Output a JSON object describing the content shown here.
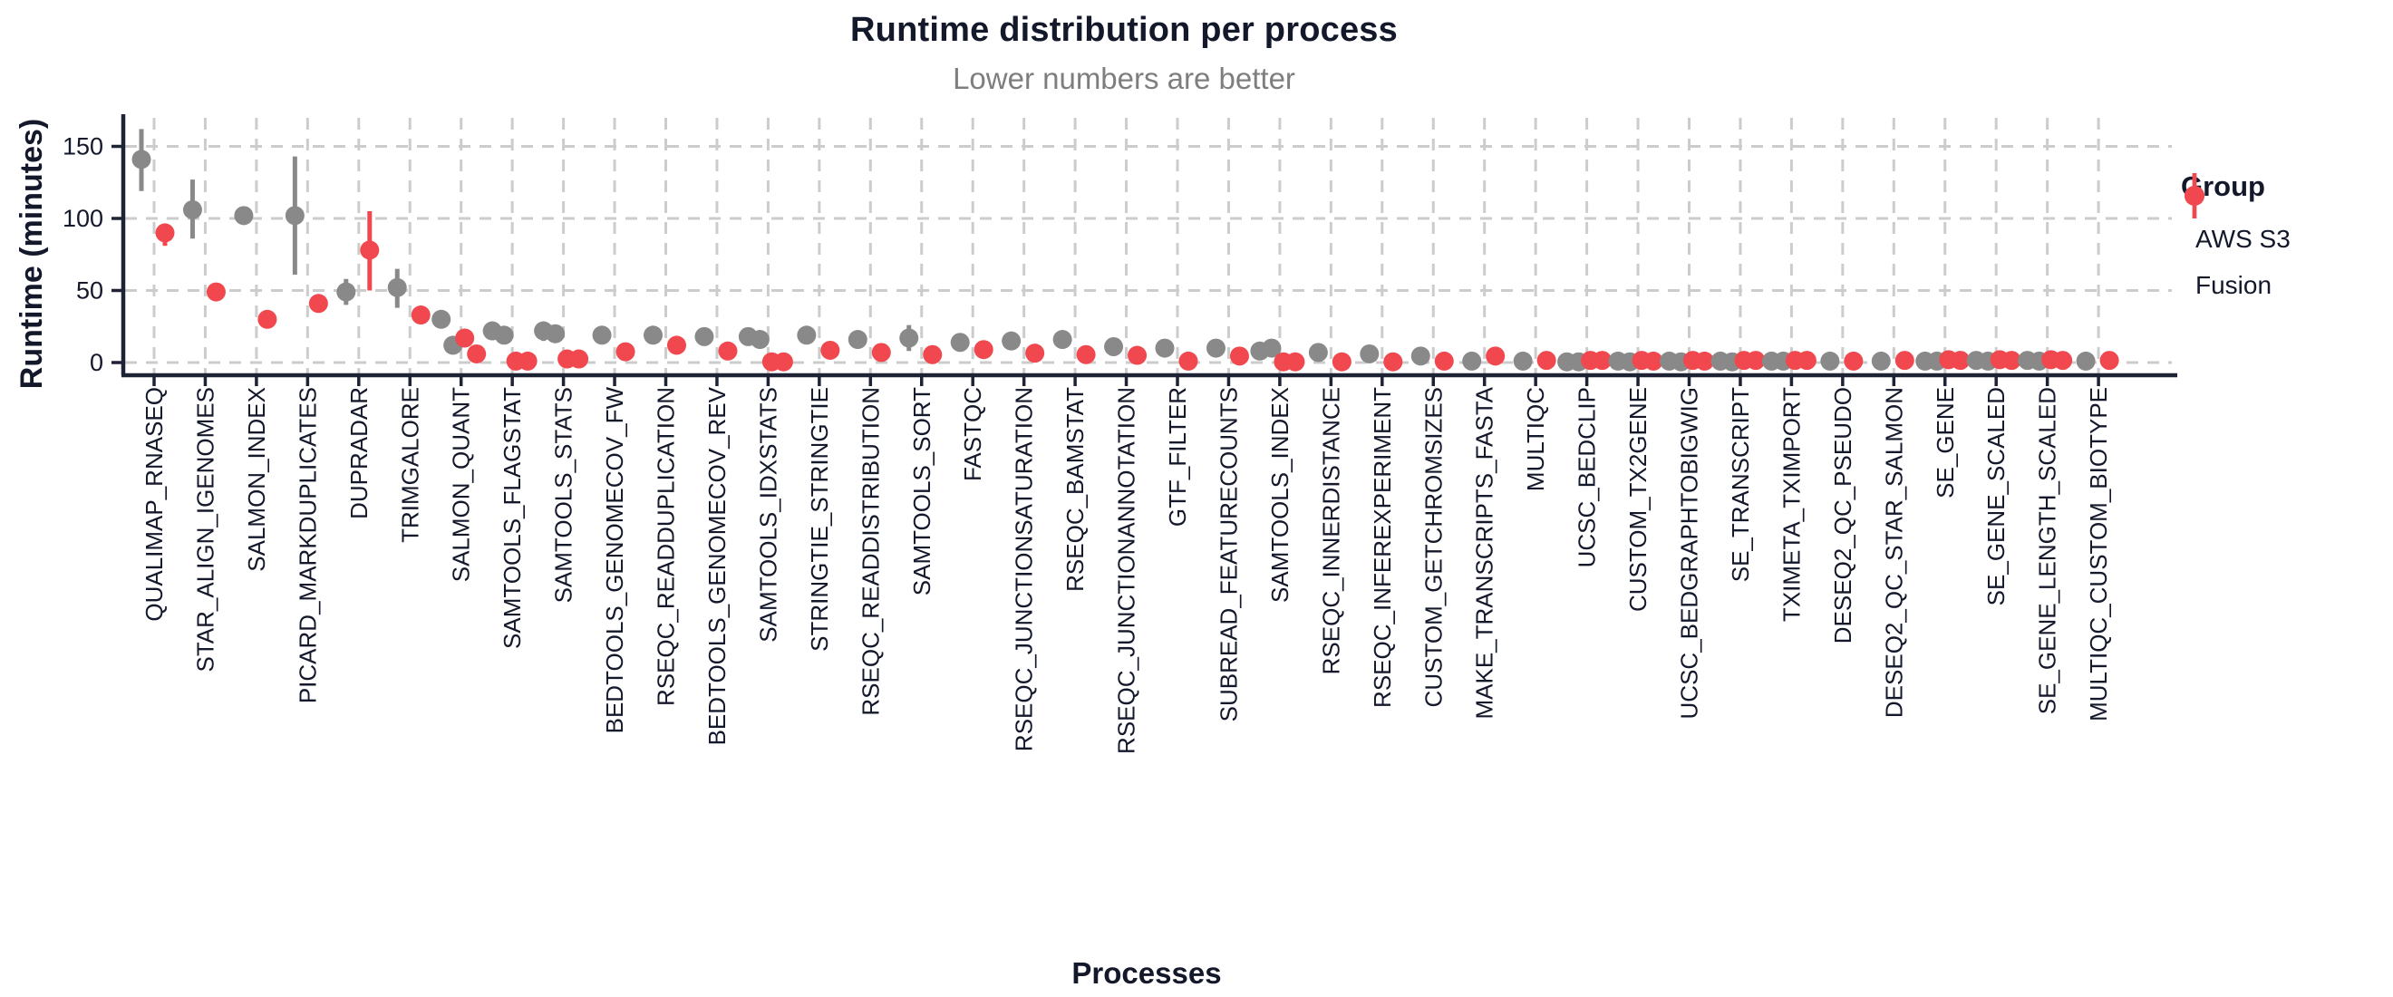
{
  "chart_data": {
    "type": "pointrange-scatter",
    "title": "Runtime distribution per process",
    "subtitle": "Lower numbers are better",
    "xlabel": "Processes",
    "ylabel": "Runtime (minutes)",
    "legend_title": "Group",
    "legend_position": "right",
    "grid": "dashed-major-both",
    "ylim": [
      0,
      165
    ],
    "yticks": [
      0,
      50,
      100,
      150
    ],
    "colors": {
      "aws_s3": "#898989",
      "fusion": "#F0484E",
      "text": "#14182B",
      "subtitle": "#7E7E7E",
      "grid": "#CCCCCC",
      "axis": "#1E2235"
    },
    "series": [
      {
        "name": "AWS S3",
        "key": "aws_s3",
        "color": "#898989"
      },
      {
        "name": "Fusion",
        "key": "fusion",
        "color": "#F0484E"
      }
    ],
    "data": [
      {
        "process": "QUALIMAP_RNASEQ",
        "aws_s3": {
          "points": [
            141
          ],
          "range": [
            119,
            162
          ]
        },
        "fusion": {
          "points": [
            90
          ],
          "range": [
            81,
            96
          ]
        }
      },
      {
        "process": "STAR_ALIGN_IGENOMES",
        "aws_s3": {
          "points": [
            106
          ],
          "range": [
            86,
            127
          ]
        },
        "fusion": {
          "points": [
            49
          ],
          "range": null
        }
      },
      {
        "process": "SALMON_INDEX",
        "aws_s3": {
          "points": [
            102
          ],
          "range": null
        },
        "fusion": {
          "points": [
            30
          ],
          "range": null
        }
      },
      {
        "process": "PICARD_MARKDUPLICATES",
        "aws_s3": {
          "points": [
            102
          ],
          "range": [
            61,
            143
          ]
        },
        "fusion": {
          "points": [
            41
          ],
          "range": null
        }
      },
      {
        "process": "DUPRADAR",
        "aws_s3": {
          "points": [
            49
          ],
          "range": [
            40,
            58
          ]
        },
        "fusion": {
          "points": [
            78
          ],
          "range": [
            50,
            105
          ]
        }
      },
      {
        "process": "TRIMGALORE",
        "aws_s3": {
          "points": [
            52
          ],
          "range": [
            38,
            65
          ]
        },
        "fusion": {
          "points": [
            33
          ],
          "range": null
        }
      },
      {
        "process": "SALMON_QUANT",
        "aws_s3": {
          "points": [
            30,
            12
          ],
          "range": null
        },
        "fusion": {
          "points": [
            17,
            6
          ],
          "range": null
        }
      },
      {
        "process": "SAMTOOLS_FLAGSTAT",
        "aws_s3": {
          "points": [
            22,
            19
          ],
          "range": null
        },
        "fusion": {
          "points": [
            1,
            1
          ],
          "range": null
        }
      },
      {
        "process": "SAMTOOLS_STATS",
        "aws_s3": {
          "points": [
            22,
            20
          ],
          "range": [
            15,
            28
          ]
        },
        "fusion": {
          "points": [
            2.5,
            2.5
          ],
          "range": null
        }
      },
      {
        "process": "BEDTOOLS_GENOMECOV_FW",
        "aws_s3": {
          "points": [
            19
          ],
          "range": null
        },
        "fusion": {
          "points": [
            7.5
          ],
          "range": null
        }
      },
      {
        "process": "RSEQC_READDUPLICATION",
        "aws_s3": {
          "points": [
            19
          ],
          "range": null
        },
        "fusion": {
          "points": [
            12
          ],
          "range": null
        }
      },
      {
        "process": "BEDTOOLS_GENOMECOV_REV",
        "aws_s3": {
          "points": [
            18
          ],
          "range": null
        },
        "fusion": {
          "points": [
            8
          ],
          "range": null
        }
      },
      {
        "process": "SAMTOOLS_IDXSTATS",
        "aws_s3": {
          "points": [
            18,
            16
          ],
          "range": null
        },
        "fusion": {
          "points": [
            0.5,
            0.5
          ],
          "range": null
        }
      },
      {
        "process": "STRINGTIE_STRINGTIE",
        "aws_s3": {
          "points": [
            19
          ],
          "range": null
        },
        "fusion": {
          "points": [
            8.5
          ],
          "range": null
        }
      },
      {
        "process": "RSEQC_READDISTRIBUTION",
        "aws_s3": {
          "points": [
            16
          ],
          "range": null
        },
        "fusion": {
          "points": [
            7
          ],
          "range": null
        }
      },
      {
        "process": "SAMTOOLS_SORT",
        "aws_s3": {
          "points": [
            17
          ],
          "range": [
            8,
            26
          ]
        },
        "fusion": {
          "points": [
            5.5
          ],
          "range": null
        }
      },
      {
        "process": "FASTQC",
        "aws_s3": {
          "points": [
            14
          ],
          "range": null
        },
        "fusion": {
          "points": [
            9
          ],
          "range": null
        }
      },
      {
        "process": "RSEQC_JUNCTIONSATURATION",
        "aws_s3": {
          "points": [
            15
          ],
          "range": null
        },
        "fusion": {
          "points": [
            6.5
          ],
          "range": null
        }
      },
      {
        "process": "RSEQC_BAMSTAT",
        "aws_s3": {
          "points": [
            16
          ],
          "range": null
        },
        "fusion": {
          "points": [
            5.5
          ],
          "range": null
        }
      },
      {
        "process": "RSEQC_JUNCTIONANNOTATION",
        "aws_s3": {
          "points": [
            11
          ],
          "range": null
        },
        "fusion": {
          "points": [
            5
          ],
          "range": null
        }
      },
      {
        "process": "GTF_FILTER",
        "aws_s3": {
          "points": [
            10
          ],
          "range": null
        },
        "fusion": {
          "points": [
            1
          ],
          "range": null
        }
      },
      {
        "process": "SUBREAD_FEATURECOUNTS",
        "aws_s3": {
          "points": [
            10
          ],
          "range": null
        },
        "fusion": {
          "points": [
            4.5
          ],
          "range": null
        }
      },
      {
        "process": "SAMTOOLS_INDEX",
        "aws_s3": {
          "points": [
            8,
            10
          ],
          "range": null
        },
        "fusion": {
          "points": [
            0.5,
            0.5
          ],
          "range": null
        }
      },
      {
        "process": "RSEQC_INNERDISTANCE",
        "aws_s3": {
          "points": [
            7
          ],
          "range": null
        },
        "fusion": {
          "points": [
            0.5
          ],
          "range": null
        }
      },
      {
        "process": "RSEQC_INFEREXPERIMENT",
        "aws_s3": {
          "points": [
            6
          ],
          "range": null
        },
        "fusion": {
          "points": [
            0.5
          ],
          "range": null
        }
      },
      {
        "process": "CUSTOM_GETCHROMSIZES",
        "aws_s3": {
          "points": [
            4.5
          ],
          "range": null
        },
        "fusion": {
          "points": [
            1
          ],
          "range": null
        }
      },
      {
        "process": "MAKE_TRANSCRIPTS_FASTA",
        "aws_s3": {
          "points": [
            1
          ],
          "range": null
        },
        "fusion": {
          "points": [
            4.5
          ],
          "range": null
        }
      },
      {
        "process": "MULTIQC",
        "aws_s3": {
          "points": [
            1
          ],
          "range": null
        },
        "fusion": {
          "points": [
            1.5
          ],
          "range": null
        }
      },
      {
        "process": "UCSC_BEDCLIP",
        "aws_s3": {
          "points": [
            0.5,
            0.5
          ],
          "range": null
        },
        "fusion": {
          "points": [
            1.5,
            1.5
          ],
          "range": null
        }
      },
      {
        "process": "CUSTOM_TX2GENE",
        "aws_s3": {
          "points": [
            1,
            0.5
          ],
          "range": null
        },
        "fusion": {
          "points": [
            1.5,
            1
          ],
          "range": null
        }
      },
      {
        "process": "UCSC_BEDGRAPHTOBIGWIG",
        "aws_s3": {
          "points": [
            1,
            0.5
          ],
          "range": null
        },
        "fusion": {
          "points": [
            1.5,
            1
          ],
          "range": null
        }
      },
      {
        "process": "SE_TRANSCRIPT",
        "aws_s3": {
          "points": [
            1,
            0.5
          ],
          "range": null
        },
        "fusion": {
          "points": [
            1.5,
            1.5
          ],
          "range": null
        }
      },
      {
        "process": "TXIMETA_TXIMPORT",
        "aws_s3": {
          "points": [
            1,
            1
          ],
          "range": null
        },
        "fusion": {
          "points": [
            1.5,
            1.5
          ],
          "range": null
        }
      },
      {
        "process": "DESEQ2_QC_PSEUDO",
        "aws_s3": {
          "points": [
            1
          ],
          "range": null
        },
        "fusion": {
          "points": [
            1
          ],
          "range": null
        }
      },
      {
        "process": "DESEQ2_QC_STAR_SALMON",
        "aws_s3": {
          "points": [
            1
          ],
          "range": null
        },
        "fusion": {
          "points": [
            1.5
          ],
          "range": null
        }
      },
      {
        "process": "SE_GENE",
        "aws_s3": {
          "points": [
            1,
            1
          ],
          "range": null
        },
        "fusion": {
          "points": [
            2,
            1.5
          ],
          "range": null
        }
      },
      {
        "process": "SE_GENE_SCALED",
        "aws_s3": {
          "points": [
            1.5,
            1
          ],
          "range": null
        },
        "fusion": {
          "points": [
            2,
            1.5
          ],
          "range": null
        }
      },
      {
        "process": "SE_GENE_LENGTH_SCALED",
        "aws_s3": {
          "points": [
            1.5,
            1
          ],
          "range": null
        },
        "fusion": {
          "points": [
            2,
            1.5
          ],
          "range": null
        }
      },
      {
        "process": "MULTIQC_CUSTOM_BIOTYPE",
        "aws_s3": {
          "points": [
            1
          ],
          "range": null
        },
        "fusion": {
          "points": [
            1.5
          ],
          "range": null
        }
      }
    ]
  }
}
